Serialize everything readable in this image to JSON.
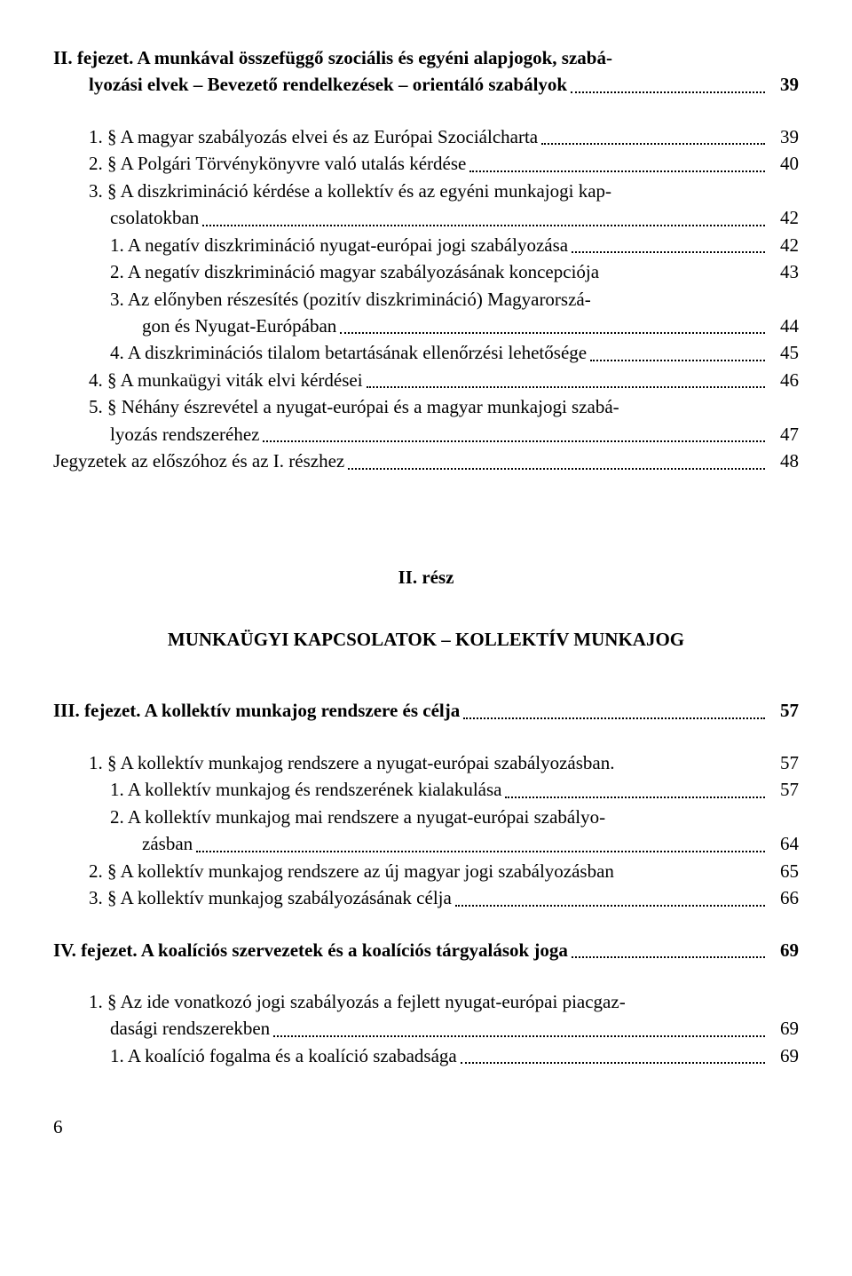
{
  "section2": {
    "heading_l1": "II. fejezet. A munkával összefüggő szociális és egyéni alapjogok, szabá-",
    "heading_l2": "lyozási elvek – Bevezető rendelkezések – orientáló szabályok",
    "heading_page": "39",
    "items": [
      {
        "text": "1. §  A magyar szabályozás elvei és az Európai Szociálcharta",
        "page": "39",
        "indent": 1
      },
      {
        "text": "2. §  A Polgári Törvénykönyvre való utalás kérdése",
        "page": "40",
        "indent": 1
      },
      {
        "text_l1": "3. §  A diszkrimináció kérdése a kollektív és az egyéni munkajogi kap-",
        "text_l2": "csolatokban",
        "page": "42",
        "indent": 1,
        "indent2": 2
      },
      {
        "text": "1. A negatív diszkrimináció nyugat-európai jogi szabályozása",
        "page": "42",
        "indent": 2
      },
      {
        "text": "2. A negatív diszkrimináció magyar szabályozásának koncepciója",
        "page": "43",
        "indent": 2,
        "nodots": true
      },
      {
        "text_l1": "3. Az előnyben részesítés (pozitív diszkrimináció) Magyarorszá-",
        "text_l2": "gon és Nyugat-Európában",
        "page": "44",
        "indent": 2,
        "indent2": 3
      },
      {
        "text": "4. A diszkriminációs tilalom betartásának ellenőrzési lehetősége",
        "page": "45",
        "indent": 2
      },
      {
        "text": "4. §  A munkaügyi viták elvi kérdései",
        "page": "46",
        "indent": 1
      },
      {
        "text_l1": "5. §  Néhány észrevétel a nyugat-európai és a magyar munkajogi szabá-",
        "text_l2": "lyozás rendszeréhez",
        "page": "47",
        "indent": 1,
        "indent2": 2
      },
      {
        "text": "Jegyzetek az előszóhoz és az I. részhez",
        "page": "48",
        "indent": 0
      }
    ]
  },
  "part2": {
    "label": "II. rész",
    "title": "MUNKAÜGYI KAPCSOLATOK – KOLLEKTÍV MUNKAJOG"
  },
  "section3": {
    "heading": "III. fejezet. A kollektív munkajog rendszere és célja",
    "heading_page": "57",
    "items": [
      {
        "text": "1. §  A kollektív munkajog rendszere a nyugat-európai szabályozásban.",
        "page": "57",
        "indent": 1,
        "nodots": true
      },
      {
        "text": "1. A kollektív munkajog és rendszerének kialakulása",
        "page": "57",
        "indent": 2
      },
      {
        "text_l1": "2. A kollektív munkajog mai rendszere a nyugat-európai szabályo-",
        "text_l2": "zásban",
        "page": "64",
        "indent": 2,
        "indent2": 3
      },
      {
        "text": "2. §  A kollektív munkajog rendszere az új magyar jogi szabályozásban",
        "page": "65",
        "indent": 1,
        "nodots": true
      },
      {
        "text": "3. §  A kollektív munkajog szabályozásának célja",
        "page": "66",
        "indent": 1
      }
    ]
  },
  "section4": {
    "heading": "IV. fejezet. A koalíciós szervezetek és a koalíciós tárgyalások joga",
    "heading_page": "69",
    "items": [
      {
        "text_l1": "1. §  Az ide vonatkozó jogi szabályozás a fejlett nyugat-európai piacgaz-",
        "text_l2": "dasági rendszerekben",
        "page": "69",
        "indent": 1,
        "indent2": 2
      },
      {
        "text": "1. A koalíció fogalma és a koalíció szabadsága",
        "page": "69",
        "indent": 2
      }
    ]
  },
  "footer_page": "6"
}
